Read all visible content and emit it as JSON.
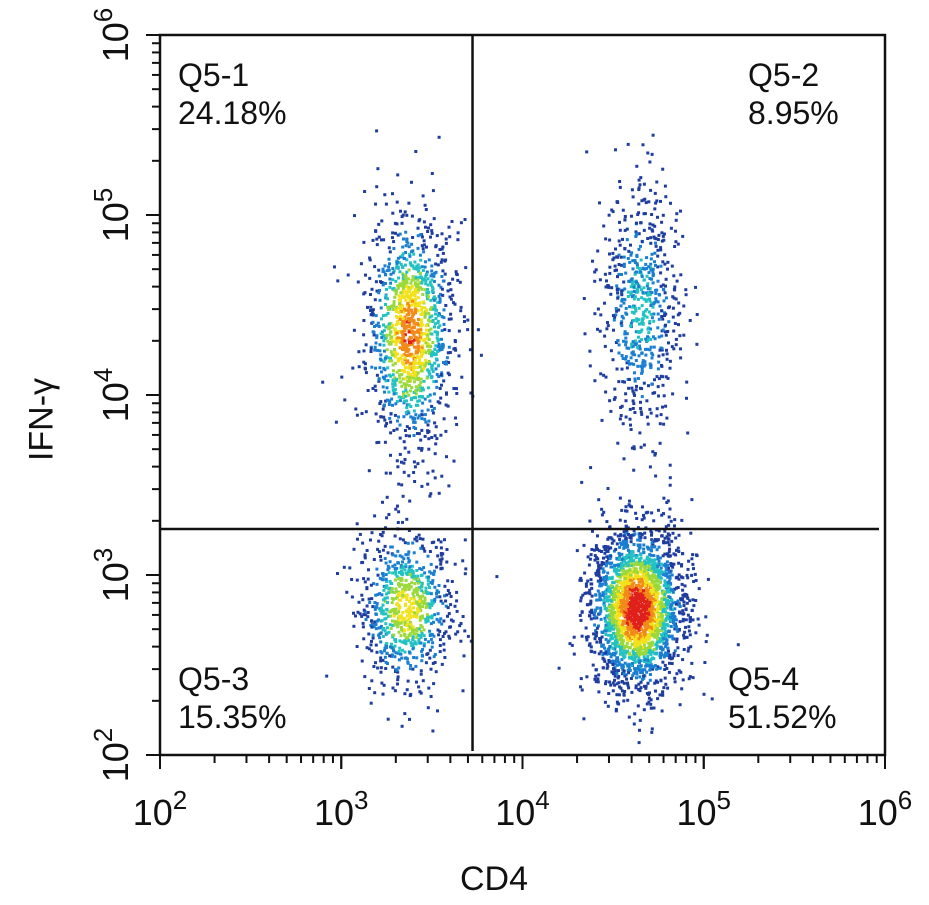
{
  "chart_data": {
    "type": "scatter",
    "subtype": "flow-cytometry density dot plot",
    "xlabel": "CD4",
    "ylabel": "IFN-γ",
    "x_scale": "log10",
    "y_scale": "log10",
    "xlim": [
      100,
      1000000
    ],
    "ylim": [
      100,
      1000000
    ],
    "x_ticks": [
      {
        "value": 100,
        "base": "10",
        "exp": "2"
      },
      {
        "value": 1000,
        "base": "10",
        "exp": "3"
      },
      {
        "value": 10000,
        "base": "10",
        "exp": "4"
      },
      {
        "value": 100000,
        "base": "10",
        "exp": "5"
      },
      {
        "value": 1000000,
        "base": "10",
        "exp": "6"
      }
    ],
    "y_ticks": [
      {
        "value": 100,
        "base": "10",
        "exp": "2"
      },
      {
        "value": 1000,
        "base": "10",
        "exp": "3"
      },
      {
        "value": 10000,
        "base": "10",
        "exp": "4"
      },
      {
        "value": 100000,
        "base": "10",
        "exp": "5"
      },
      {
        "value": 1000000,
        "base": "10",
        "exp": "6"
      }
    ],
    "gates": {
      "x": 5300,
      "y": 1800
    },
    "quadrants": [
      {
        "name": "Q5-1",
        "percent": "24.18%",
        "position": "top-left"
      },
      {
        "name": "Q5-2",
        "percent": "8.95%",
        "position": "top-right"
      },
      {
        "name": "Q5-3",
        "percent": "15.35%",
        "position": "bottom-left"
      },
      {
        "name": "Q5-4",
        "percent": "51.52%",
        "position": "bottom-right"
      }
    ],
    "populations": [
      {
        "x_center": 2400,
        "y_center": 22000,
        "x_spread": 0.12,
        "y_spread": 0.32,
        "count": 1300,
        "density_peak": 0.85
      },
      {
        "x_center": 2300,
        "y_center": 650,
        "x_spread": 0.13,
        "y_spread": 0.22,
        "count": 800,
        "density_peak": 0.65
      },
      {
        "x_center": 43000,
        "y_center": 650,
        "x_spread": 0.13,
        "y_spread": 0.22,
        "count": 2400,
        "density_peak": 1.0
      },
      {
        "x_center": 45000,
        "y_center": 30000,
        "x_spread": 0.11,
        "y_spread": 0.35,
        "count": 650,
        "density_peak": 0.35
      }
    ],
    "color_scale": [
      "#1f3d9e",
      "#1a7fd1",
      "#23c2c2",
      "#9bd93a",
      "#f2e21c",
      "#f28a1a",
      "#e0201b"
    ],
    "grid": false,
    "legend": "none"
  }
}
